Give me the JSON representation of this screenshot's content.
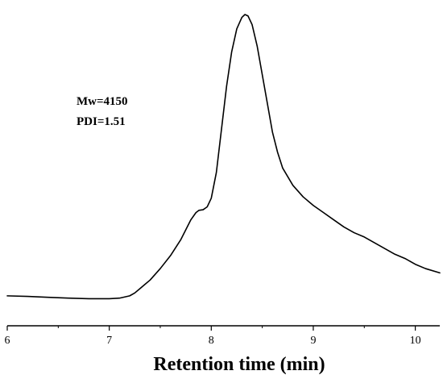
{
  "chart_data": {
    "type": "line",
    "title": "",
    "xlabel": "Retention time (min)",
    "ylabel": "",
    "xlim": [
      6.0,
      10.24
    ],
    "ylim": [
      0,
      1
    ],
    "xticks": [
      6,
      7,
      8,
      9,
      10
    ],
    "x_tick_labels": [
      "6",
      "7",
      "8",
      "9",
      "10"
    ],
    "y_axis_visible": false,
    "grid": false,
    "legend": "none",
    "annotations": [
      "Mw=4150",
      "PDI=1.51"
    ],
    "series": [
      {
        "color": "#000000",
        "x": [
          6.0,
          6.2,
          6.4,
          6.6,
          6.8,
          7.0,
          7.1,
          7.2,
          7.25,
          7.3,
          7.35,
          7.4,
          7.5,
          7.6,
          7.7,
          7.75,
          7.8,
          7.85,
          7.88,
          7.92,
          7.96,
          8.0,
          8.05,
          8.1,
          8.15,
          8.2,
          8.25,
          8.3,
          8.33,
          8.36,
          8.4,
          8.45,
          8.5,
          8.55,
          8.6,
          8.65,
          8.7,
          8.8,
          8.9,
          9.0,
          9.1,
          9.2,
          9.3,
          9.4,
          9.5,
          9.6,
          9.7,
          9.8,
          9.9,
          10.0,
          10.1,
          10.24
        ],
        "y": [
          0.02,
          0.018,
          0.015,
          0.012,
          0.01,
          0.01,
          0.012,
          0.02,
          0.03,
          0.045,
          0.06,
          0.075,
          0.115,
          0.16,
          0.215,
          0.25,
          0.285,
          0.31,
          0.318,
          0.32,
          0.33,
          0.36,
          0.45,
          0.6,
          0.75,
          0.87,
          0.95,
          0.99,
          1.0,
          0.995,
          0.965,
          0.89,
          0.79,
          0.69,
          0.59,
          0.52,
          0.465,
          0.405,
          0.365,
          0.335,
          0.31,
          0.285,
          0.26,
          0.24,
          0.225,
          0.205,
          0.185,
          0.165,
          0.15,
          0.13,
          0.115,
          0.1
        ]
      }
    ]
  }
}
